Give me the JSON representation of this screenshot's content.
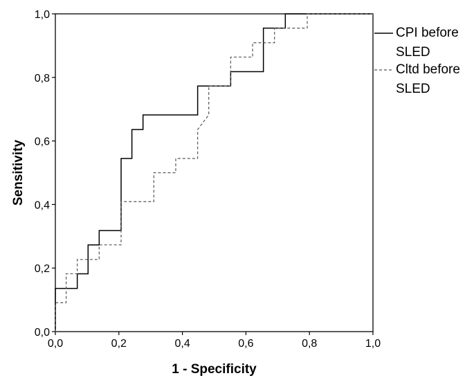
{
  "chart_data": {
    "type": "line",
    "title": "",
    "xlabel": "1 - Specificity",
    "ylabel": "Sensitivity",
    "xlim": [
      0.0,
      1.0
    ],
    "ylim": [
      0.0,
      1.0
    ],
    "xticks": [
      "0,0",
      "0,2",
      "0,4",
      "0,6",
      "0,8",
      "1,0"
    ],
    "yticks": [
      "0,0",
      "0,2",
      "0,4",
      "0,6",
      "0,8",
      "1,0"
    ],
    "grid": false,
    "legend_position": "right",
    "series": [
      {
        "name_lines": [
          "CPI before",
          "SLED"
        ],
        "style": "solid",
        "color": "#000000",
        "steps": [
          [
            0.0,
            0.0
          ],
          [
            0.0,
            0.136
          ],
          [
            0.069,
            0.136
          ],
          [
            0.069,
            0.182
          ],
          [
            0.103,
            0.182
          ],
          [
            0.103,
            0.273
          ],
          [
            0.138,
            0.273
          ],
          [
            0.138,
            0.318
          ],
          [
            0.207,
            0.318
          ],
          [
            0.207,
            0.545
          ],
          [
            0.241,
            0.545
          ],
          [
            0.241,
            0.636
          ],
          [
            0.276,
            0.636
          ],
          [
            0.276,
            0.682
          ],
          [
            0.448,
            0.682
          ],
          [
            0.448,
            0.773
          ],
          [
            0.552,
            0.773
          ],
          [
            0.552,
            0.818
          ],
          [
            0.655,
            0.818
          ],
          [
            0.655,
            0.955
          ],
          [
            0.724,
            0.955
          ],
          [
            0.724,
            1.0
          ],
          [
            1.0,
            1.0
          ]
        ]
      },
      {
        "name_lines": [
          "Cltd before",
          "SLED"
        ],
        "style": "dashed",
        "color": "#555555",
        "steps": [
          [
            0.0,
            0.0
          ],
          [
            0.0,
            0.091
          ],
          [
            0.034,
            0.091
          ],
          [
            0.034,
            0.182
          ],
          [
            0.069,
            0.182
          ],
          [
            0.069,
            0.227
          ],
          [
            0.138,
            0.227
          ],
          [
            0.138,
            0.273
          ],
          [
            0.207,
            0.273
          ],
          [
            0.207,
            0.409
          ],
          [
            0.31,
            0.409
          ],
          [
            0.31,
            0.5
          ],
          [
            0.379,
            0.5
          ],
          [
            0.379,
            0.545
          ],
          [
            0.448,
            0.545
          ],
          [
            0.448,
            0.636
          ],
          [
            0.483,
            0.682
          ],
          [
            0.483,
            0.773
          ],
          [
            0.552,
            0.773
          ],
          [
            0.552,
            0.864
          ],
          [
            0.621,
            0.864
          ],
          [
            0.621,
            0.909
          ],
          [
            0.69,
            0.909
          ],
          [
            0.69,
            0.955
          ],
          [
            0.793,
            0.955
          ],
          [
            0.793,
            1.0
          ],
          [
            1.0,
            1.0
          ]
        ]
      }
    ]
  }
}
